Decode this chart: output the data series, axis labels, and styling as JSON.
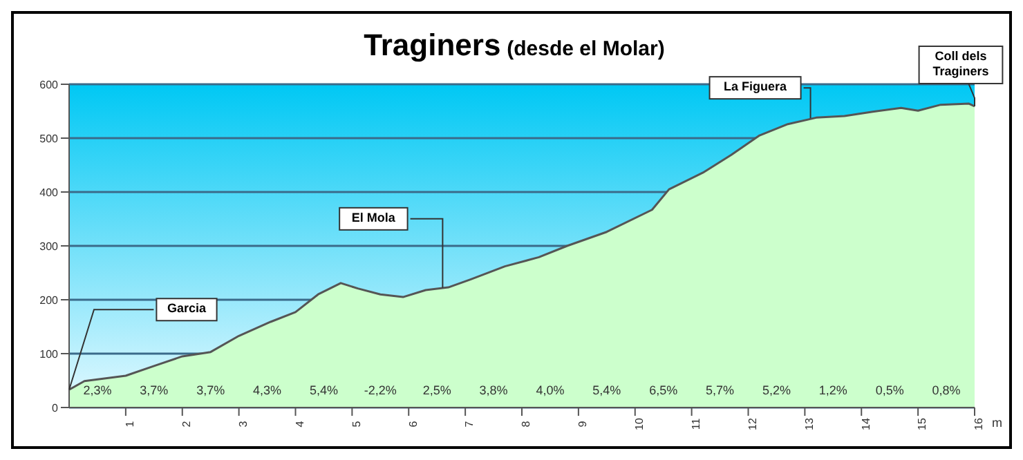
{
  "chart_data": {
    "type": "area",
    "title": "Traginers",
    "subtitle": "(desde el Molar)",
    "xlabel": "m",
    "x": [
      0,
      0.27,
      1,
      1.5,
      2,
      2.5,
      3,
      3.56,
      4,
      4.4,
      4.8,
      5.1,
      5.5,
      5.9,
      6.3,
      6.7,
      7.1,
      7.7,
      8.3,
      8.8,
      9.5,
      10.3,
      10.6,
      11.2,
      11.7,
      12.2,
      12.7,
      13.2,
      13.7,
      14.2,
      14.7,
      15,
      15.4,
      15.9,
      16
    ],
    "series": [
      {
        "color": "#ccffcc",
        "values": [
          33,
          49,
          59,
          77,
          95,
          103,
          133,
          159,
          177,
          210,
          231,
          221,
          210,
          205,
          218,
          223,
          238,
          262,
          279,
          300,
          326,
          367,
          405,
          436,
          469,
          505,
          526,
          538,
          541,
          549,
          556,
          551,
          562,
          564,
          559
        ]
      }
    ],
    "xlim": [
      0,
      16
    ],
    "xticks": [
      1,
      2,
      3,
      4,
      5,
      6,
      7,
      8,
      9,
      10,
      11,
      12,
      13,
      14,
      15,
      16
    ],
    "ylim": [
      0,
      600
    ],
    "yticks": [
      0,
      100,
      200,
      300,
      400,
      500,
      600
    ],
    "grid": "y",
    "legend": false,
    "annotations": [
      {
        "text": "Garcia",
        "x": 0,
        "y": 33
      },
      {
        "text": "El Mola",
        "x": 6.6,
        "y": 222
      },
      {
        "text": "La Figuera",
        "x": 13.1,
        "y": 537
      },
      {
        "text": "Coll dels Traginers",
        "x": 16,
        "y": 559
      },
      "2,3%",
      "3,7%",
      "3,7%",
      "4,3%",
      "5,4%",
      "-2,2%",
      "2,5%",
      "3,8%",
      "4,0%",
      "5,4%",
      "6,5%",
      "5,7%",
      "5,2%",
      "1,2%",
      "0,5%",
      "0,8%"
    ]
  }
}
